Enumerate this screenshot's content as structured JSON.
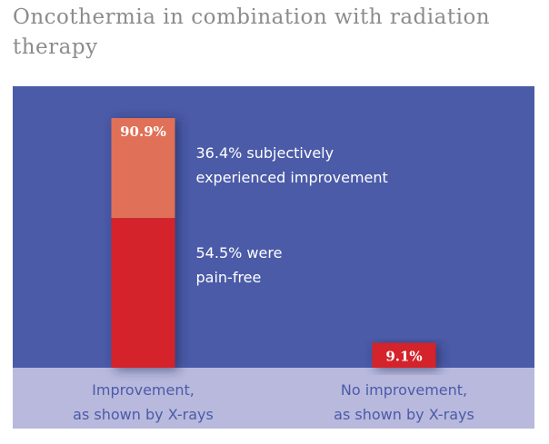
{
  "chart_data": {
    "type": "stacked-bar",
    "title": [
      "Oncothermia in combination with radiation",
      "therapy"
    ],
    "categories": [
      [
        "Improvement,",
        "as shown by X-rays"
      ],
      [
        "No improvement,",
        "as shown by X-rays"
      ]
    ],
    "series": [
      {
        "color": "#d4232b",
        "values": [
          54.5,
          9.1
        ]
      },
      {
        "color": "#e07158",
        "values": [
          36.4,
          null
        ]
      }
    ],
    "totals": [
      90.9,
      9.1
    ],
    "total_labels": [
      "90.9%",
      "9.1%"
    ],
    "annotations": [
      {
        "series": 1,
        "category": 0,
        "lines": [
          "36.4% subjectively",
          "experienced improvement"
        ]
      },
      {
        "series": 0,
        "category": 0,
        "lines": [
          "54.5% were",
          "pain-free"
        ]
      }
    ],
    "ylim": [
      0,
      100
    ],
    "background": "#4b5ba8",
    "category_band": "#b8b9dd"
  }
}
